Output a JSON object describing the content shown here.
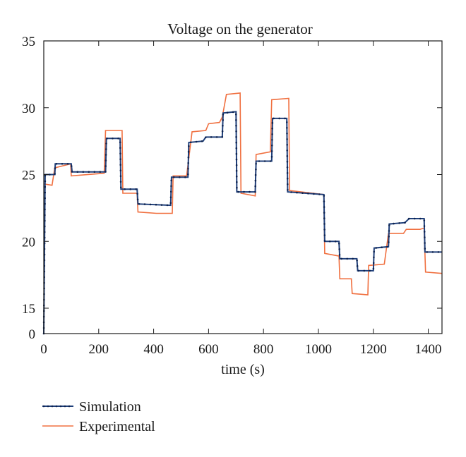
{
  "chart_data": {
    "type": "line",
    "title": "Voltage on the generator",
    "xlabel": "time (s)",
    "ylabel": "",
    "xlim": [
      0,
      1450
    ],
    "x_ticks": [
      "0",
      "200",
      "400",
      "600",
      "800",
      "1000",
      "1200",
      "1400"
    ],
    "y_ticks": [
      "0",
      "15",
      "20",
      "25",
      "30",
      "35"
    ],
    "y_axis_note": "broken scale: 0 shown just below 15",
    "grid": false,
    "legend_position": "below plot, left",
    "series": [
      {
        "name": "Simulation",
        "color": "#1f3f7a",
        "style": "dotted line with markers",
        "points": [
          [
            0,
            0
          ],
          [
            5,
            25.0
          ],
          [
            40,
            25.0
          ],
          [
            42,
            25.8
          ],
          [
            100,
            25.8
          ],
          [
            103,
            25.2
          ],
          [
            225,
            25.2
          ],
          [
            228,
            27.7
          ],
          [
            278,
            27.7
          ],
          [
            281,
            23.9
          ],
          [
            340,
            23.9
          ],
          [
            343,
            22.8
          ],
          [
            462,
            22.7
          ],
          [
            465,
            24.8
          ],
          [
            525,
            24.8
          ],
          [
            528,
            27.4
          ],
          [
            580,
            27.5
          ],
          [
            590,
            27.8
          ],
          [
            650,
            27.8
          ],
          [
            653,
            29.6
          ],
          [
            700,
            29.7
          ],
          [
            703,
            23.7
          ],
          [
            770,
            23.7
          ],
          [
            773,
            26.0
          ],
          [
            830,
            26.0
          ],
          [
            833,
            29.2
          ],
          [
            885,
            29.2
          ],
          [
            888,
            23.7
          ],
          [
            1020,
            23.5
          ],
          [
            1023,
            20.0
          ],
          [
            1075,
            20.0
          ],
          [
            1078,
            18.7
          ],
          [
            1140,
            18.7
          ],
          [
            1143,
            17.8
          ],
          [
            1200,
            17.8
          ],
          [
            1203,
            19.5
          ],
          [
            1255,
            19.6
          ],
          [
            1258,
            21.3
          ],
          [
            1315,
            21.4
          ],
          [
            1330,
            21.7
          ],
          [
            1385,
            21.7
          ],
          [
            1388,
            19.2
          ],
          [
            1450,
            19.2
          ]
        ]
      },
      {
        "name": "Experimental",
        "color": "#f07040",
        "style": "solid line",
        "points": [
          [
            0,
            24.3
          ],
          [
            30,
            24.2
          ],
          [
            40,
            25.5
          ],
          [
            98,
            25.8
          ],
          [
            100,
            24.9
          ],
          [
            220,
            25.1
          ],
          [
            225,
            28.3
          ],
          [
            285,
            28.3
          ],
          [
            288,
            23.6
          ],
          [
            340,
            23.6
          ],
          [
            343,
            22.2
          ],
          [
            410,
            22.1
          ],
          [
            468,
            22.1
          ],
          [
            471,
            24.9
          ],
          [
            520,
            24.9
          ],
          [
            540,
            28.2
          ],
          [
            590,
            28.3
          ],
          [
            600,
            28.8
          ],
          [
            640,
            28.9
          ],
          [
            650,
            29.3
          ],
          [
            665,
            31.0
          ],
          [
            715,
            31.1
          ],
          [
            718,
            23.6
          ],
          [
            770,
            23.4
          ],
          [
            773,
            26.5
          ],
          [
            825,
            26.7
          ],
          [
            830,
            30.6
          ],
          [
            892,
            30.7
          ],
          [
            895,
            23.8
          ],
          [
            1020,
            23.5
          ],
          [
            1023,
            19.1
          ],
          [
            1075,
            18.9
          ],
          [
            1078,
            17.2
          ],
          [
            1120,
            17.2
          ],
          [
            1123,
            16.1
          ],
          [
            1180,
            16.0
          ],
          [
            1183,
            18.2
          ],
          [
            1240,
            18.3
          ],
          [
            1255,
            20.6
          ],
          [
            1310,
            20.6
          ],
          [
            1320,
            20.9
          ],
          [
            1370,
            20.9
          ],
          [
            1385,
            21.0
          ],
          [
            1390,
            17.7
          ],
          [
            1450,
            17.6
          ]
        ]
      }
    ]
  }
}
